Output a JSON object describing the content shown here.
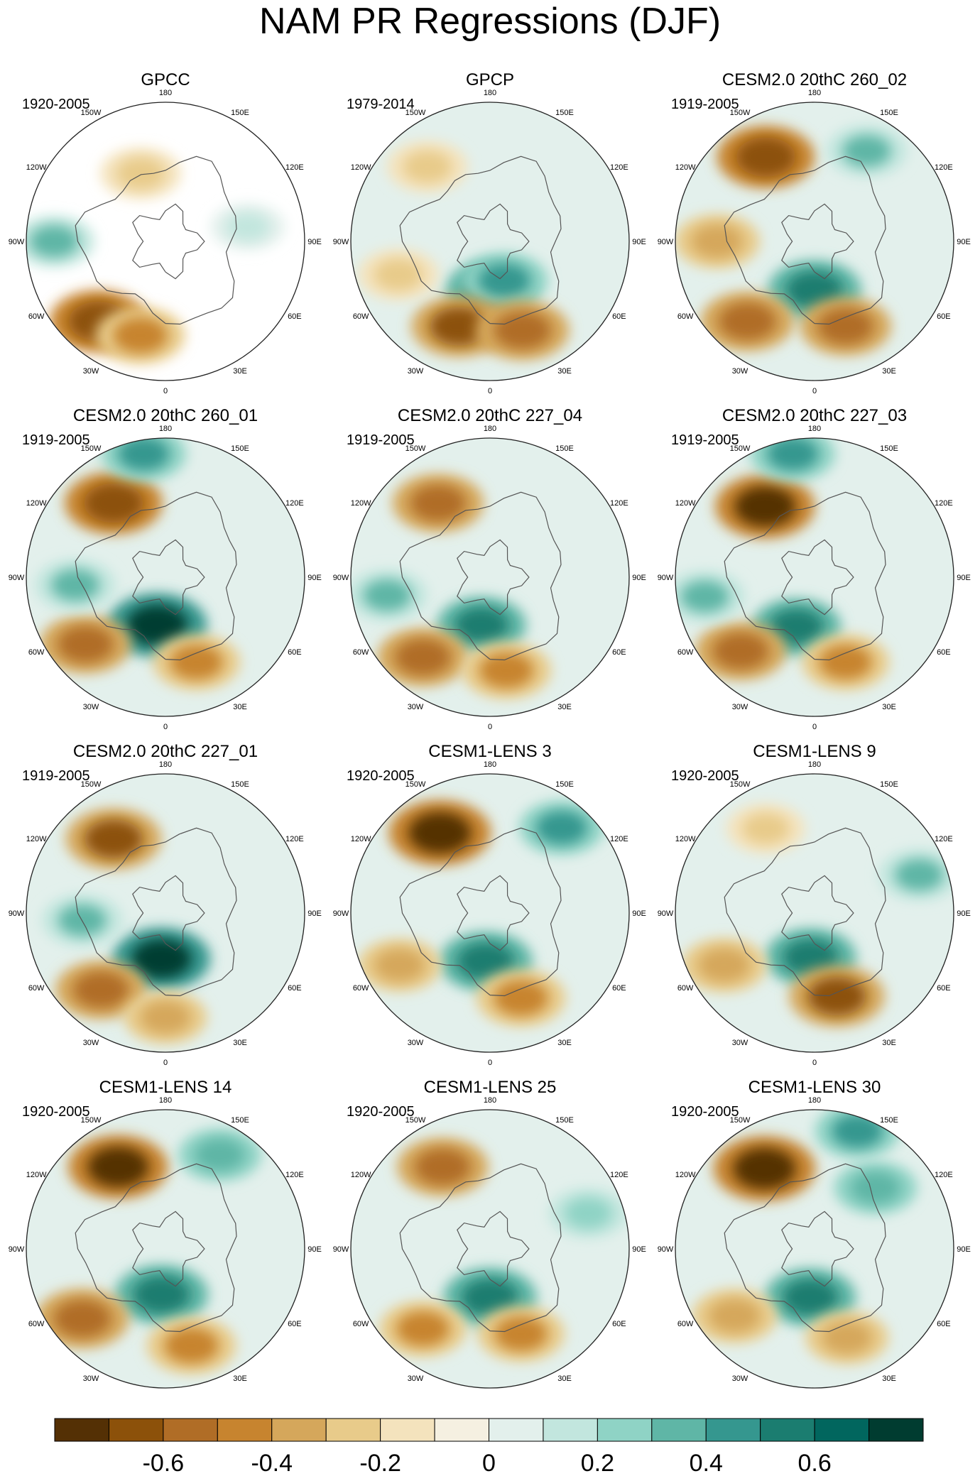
{
  "title": "NAM PR Regressions (DJF)",
  "chart_data": {
    "type": "polar-stereographic contour maps",
    "variable": "PR regressed on NAM index",
    "season": "DJF",
    "panels": [
      {
        "name": "GPCC",
        "period": "1920-2005"
      },
      {
        "name": "GPCP",
        "period": "1979-2014"
      },
      {
        "name": "CESM2.0 20thC 260_02",
        "period": "1919-2005"
      },
      {
        "name": "CESM2.0 20thC 260_01",
        "period": "1919-2005"
      },
      {
        "name": "CESM2.0 20thC 227_04",
        "period": "1919-2005"
      },
      {
        "name": "CESM2.0 20thC 227_03",
        "period": "1919-2005"
      },
      {
        "name": "CESM2.0 20thC 227_01",
        "period": "1919-2005"
      },
      {
        "name": "CESM1-LENS 3",
        "period": "1920-2005"
      },
      {
        "name": "CESM1-LENS 9",
        "period": "1920-2005"
      },
      {
        "name": "CESM1-LENS 14",
        "period": "1920-2005"
      },
      {
        "name": "CESM1-LENS 25",
        "period": "1920-2005"
      },
      {
        "name": "CESM1-LENS 30",
        "period": "1920-2005"
      }
    ],
    "longitude_labels": [
      "180",
      "150E",
      "120E",
      "90E",
      "60E",
      "30E",
      "0",
      "30W",
      "60W",
      "90W",
      "120W",
      "150W"
    ],
    "colorbar": {
      "tick_labels": [
        "-0.6",
        "-0.4",
        "-0.2",
        "0",
        "0.2",
        "0.4",
        "0.6"
      ],
      "tick_values": [
        -0.6,
        -0.4,
        -0.2,
        0,
        0.2,
        0.4,
        0.6
      ],
      "range": [
        -0.8,
        0.8
      ],
      "colors": [
        "#543005",
        "#8c510a",
        "#b06d26",
        "#c7842f",
        "#d5a75b",
        "#e8cb8a",
        "#f4e3bd",
        "#f5f0e1",
        "#e3f0ec",
        "#c2e6de",
        "#8fd3c5",
        "#5fb6a6",
        "#35978f",
        "#1b7d70",
        "#01665e",
        "#003c30"
      ]
    },
    "features_per_panel": [
      [
        {
          "lon": 200,
          "r": 0.52,
          "v": -0.3
        },
        {
          "lon": 320,
          "r": 0.75,
          "v": -0.7
        },
        {
          "lon": 345,
          "r": 0.7,
          "v": -0.5
        },
        {
          "lon": 270,
          "r": 0.8,
          "v": 0.3
        },
        {
          "lon": 100,
          "r": 0.6,
          "v": 0.15
        }
      ],
      [
        {
          "lon": 220,
          "r": 0.7,
          "v": -0.3
        },
        {
          "lon": 0,
          "r": 0.35,
          "v": 0.5
        },
        {
          "lon": 20,
          "r": 0.3,
          "v": 0.45
        },
        {
          "lon": 340,
          "r": 0.65,
          "v": -0.65
        },
        {
          "lon": 20,
          "r": 0.68,
          "v": -0.6
        },
        {
          "lon": 290,
          "r": 0.7,
          "v": -0.3
        }
      ],
      [
        {
          "lon": 210,
          "r": 0.7,
          "v": -0.7
        },
        {
          "lon": 150,
          "r": 0.75,
          "v": 0.3
        },
        {
          "lon": 0,
          "r": 0.35,
          "v": 0.6
        },
        {
          "lon": 320,
          "r": 0.75,
          "v": -0.6
        },
        {
          "lon": 20,
          "r": 0.65,
          "v": -0.55
        },
        {
          "lon": 270,
          "r": 0.7,
          "v": -0.4
        }
      ],
      [
        {
          "lon": 215,
          "r": 0.65,
          "v": -0.7
        },
        {
          "lon": 190,
          "r": 0.9,
          "v": 0.4
        },
        {
          "lon": 350,
          "r": 0.35,
          "v": 0.75
        },
        {
          "lon": 310,
          "r": 0.75,
          "v": -0.55
        },
        {
          "lon": 20,
          "r": 0.65,
          "v": -0.45
        },
        {
          "lon": 275,
          "r": 0.65,
          "v": 0.3
        }
      ],
      [
        {
          "lon": 215,
          "r": 0.65,
          "v": -0.55
        },
        {
          "lon": 350,
          "r": 0.35,
          "v": 0.5
        },
        {
          "lon": 320,
          "r": 0.75,
          "v": -0.55
        },
        {
          "lon": 10,
          "r": 0.68,
          "v": -0.5
        },
        {
          "lon": 280,
          "r": 0.75,
          "v": 0.3
        }
      ],
      [
        {
          "lon": 215,
          "r": 0.62,
          "v": -0.75
        },
        {
          "lon": 190,
          "r": 0.9,
          "v": 0.4
        },
        {
          "lon": 340,
          "r": 0.38,
          "v": 0.5
        },
        {
          "lon": 315,
          "r": 0.75,
          "v": -0.55
        },
        {
          "lon": 20,
          "r": 0.65,
          "v": -0.45
        },
        {
          "lon": 280,
          "r": 0.8,
          "v": 0.3
        }
      ],
      [
        {
          "lon": 215,
          "r": 0.65,
          "v": -0.65
        },
        {
          "lon": 355,
          "r": 0.33,
          "v": 0.7
        },
        {
          "lon": 320,
          "r": 0.72,
          "v": -0.55
        },
        {
          "lon": 0,
          "r": 0.75,
          "v": -0.35
        },
        {
          "lon": 275,
          "r": 0.6,
          "v": 0.3
        }
      ],
      [
        {
          "lon": 212,
          "r": 0.68,
          "v": -0.8
        },
        {
          "lon": 140,
          "r": 0.8,
          "v": 0.4
        },
        {
          "lon": 355,
          "r": 0.35,
          "v": 0.6
        },
        {
          "lon": 300,
          "r": 0.75,
          "v": -0.35
        },
        {
          "lon": 20,
          "r": 0.65,
          "v": -0.5
        }
      ],
      [
        {
          "lon": 210,
          "r": 0.7,
          "v": -0.25
        },
        {
          "lon": 355,
          "r": 0.32,
          "v": 0.55
        },
        {
          "lon": 15,
          "r": 0.62,
          "v": -0.65
        },
        {
          "lon": 300,
          "r": 0.75,
          "v": -0.4
        },
        {
          "lon": 110,
          "r": 0.8,
          "v": 0.3
        }
      ],
      [
        {
          "lon": 210,
          "r": 0.68,
          "v": -0.75
        },
        {
          "lon": 150,
          "r": 0.78,
          "v": 0.35
        },
        {
          "lon": 355,
          "r": 0.33,
          "v": 0.6
        },
        {
          "lon": 310,
          "r": 0.78,
          "v": -0.6
        },
        {
          "lon": 15,
          "r": 0.72,
          "v": -0.5
        }
      ],
      [
        {
          "lon": 210,
          "r": 0.68,
          "v": -0.55
        },
        {
          "lon": 0,
          "r": 0.35,
          "v": 0.6
        },
        {
          "lon": 320,
          "r": 0.75,
          "v": -0.45
        },
        {
          "lon": 20,
          "r": 0.65,
          "v": -0.45
        },
        {
          "lon": 110,
          "r": 0.75,
          "v": 0.25
        }
      ],
      [
        {
          "lon": 212,
          "r": 0.68,
          "v": -0.8
        },
        {
          "lon": 160,
          "r": 0.9,
          "v": 0.4
        },
        {
          "lon": 135,
          "r": 0.62,
          "v": 0.35
        },
        {
          "lon": 355,
          "r": 0.35,
          "v": 0.55
        },
        {
          "lon": 310,
          "r": 0.75,
          "v": -0.4
        },
        {
          "lon": 20,
          "r": 0.68,
          "v": -0.35
        }
      ]
    ]
  }
}
